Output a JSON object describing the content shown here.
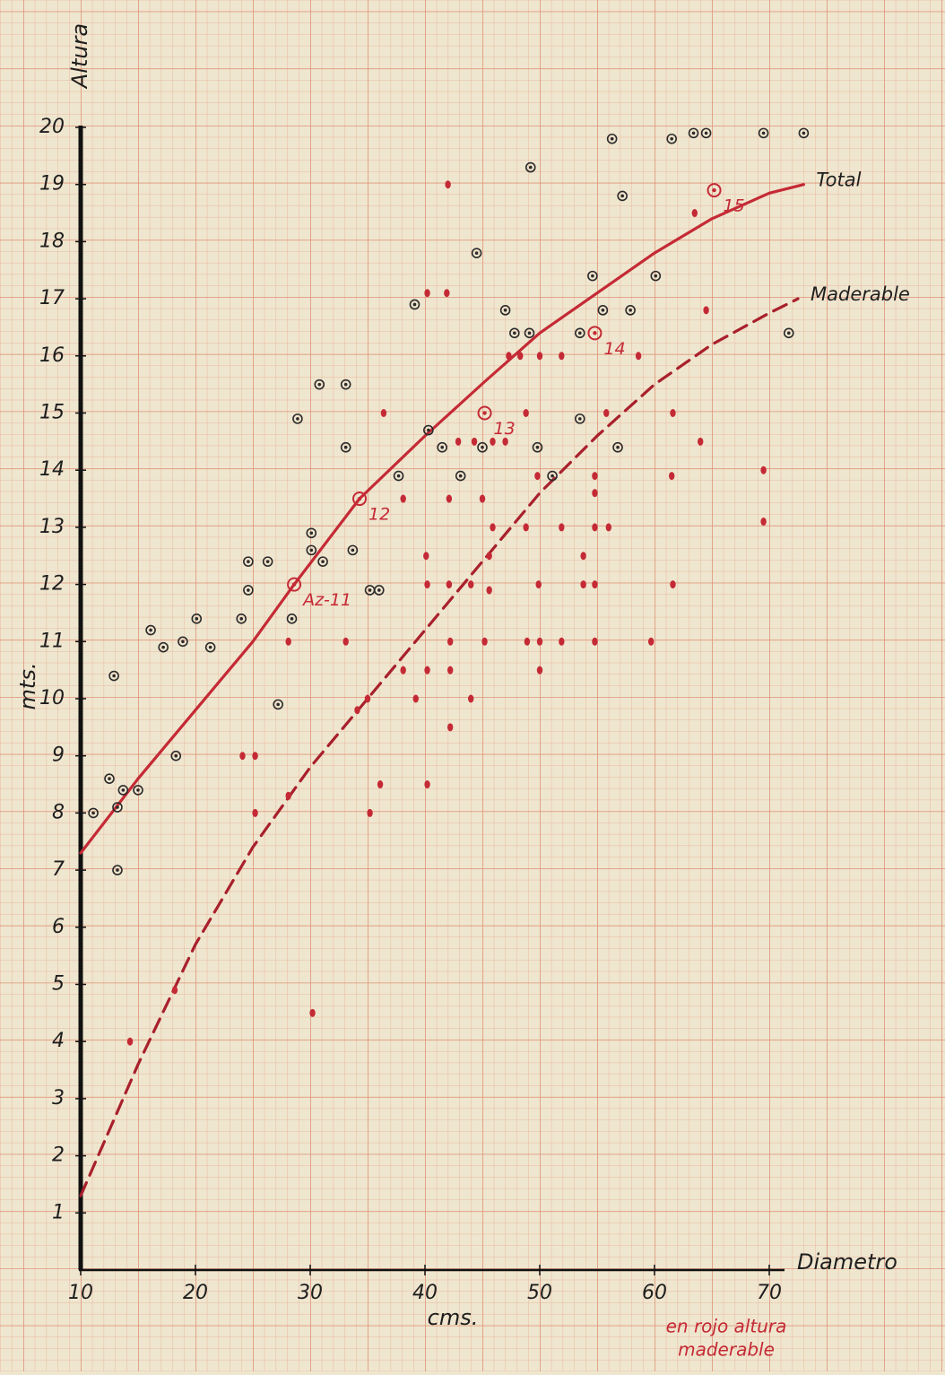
{
  "chart_data": {
    "type": "scatter",
    "y_axis_title": "Altura",
    "y_unit": "mts.",
    "x_axis_title": "Diametro",
    "x_unit": "cms.",
    "note": [
      "en rojo altura",
      "maderable"
    ],
    "xlim": [
      10,
      70
    ],
    "ylim": [
      0,
      20
    ],
    "xticks": [
      10,
      20,
      30,
      40,
      50,
      60,
      70
    ],
    "yticks": [
      1,
      2,
      3,
      4,
      5,
      6,
      7,
      8,
      9,
      10,
      11,
      12,
      13,
      14,
      15,
      16,
      17,
      18,
      19,
      20
    ],
    "points": [
      {
        "color": "#2a2a2a",
        "marker": "ring",
        "x": [
          11.1,
          12.5,
          12.9,
          13.2,
          13.2,
          13.7,
          15.0,
          16.1,
          17.2,
          18.3,
          18.9,
          20.1,
          21.3,
          24.0,
          24.6,
          24.6,
          26.3,
          27.2,
          28.4,
          28.9,
          30.1,
          30.1,
          30.8,
          31.1,
          33.1,
          33.1,
          33.7,
          35.2,
          36.0,
          37.7,
          39.1,
          40.3,
          41.5,
          43.1,
          44.5,
          45.0,
          47.0,
          47.8,
          49.1,
          49.2,
          49.8,
          51.1,
          53.5,
          53.5,
          54.6,
          55.5,
          56.3,
          56.8,
          57.2,
          57.9,
          60.1,
          61.5,
          63.4,
          64.5,
          69.5,
          71.7,
          73.0
        ],
        "values": [
          8.0,
          8.6,
          10.4,
          8.1,
          7.0,
          8.4,
          8.4,
          11.2,
          10.9,
          9.0,
          11.0,
          11.4,
          10.9,
          11.4,
          11.9,
          12.4,
          12.4,
          9.9,
          11.4,
          14.9,
          12.9,
          12.6,
          15.5,
          12.4,
          15.5,
          14.4,
          12.6,
          11.9,
          11.9,
          13.9,
          16.9,
          14.7,
          14.4,
          13.9,
          17.8,
          14.4,
          16.8,
          16.4,
          16.4,
          19.3,
          14.4,
          13.9,
          14.9,
          16.4,
          17.4,
          16.8,
          19.8,
          14.4,
          18.8,
          16.8,
          17.4,
          19.8,
          19.9,
          19.9,
          19.9,
          16.4,
          19.9
        ]
      },
      {
        "color": "#c42a35",
        "marker": "dot",
        "x": [
          14.3,
          18.2,
          24.1,
          25.2,
          25.2,
          28.1,
          28.1,
          30.2,
          33.1,
          34.1,
          35.0,
          35.2,
          36.1,
          36.4,
          38.1,
          38.1,
          39.2,
          40.1,
          40.2,
          40.2,
          40.2,
          40.2,
          41.9,
          42.0,
          42.1,
          42.1,
          42.2,
          42.2,
          42.2,
          42.9,
          44.0,
          44.0,
          44.3,
          45.0,
          45.2,
          45.6,
          45.6,
          45.9,
          45.9,
          47.0,
          47.3,
          48.3,
          48.8,
          48.8,
          48.9,
          49.8,
          49.9,
          50.0,
          50.0,
          50.0,
          51.9,
          51.9,
          51.9,
          53.8,
          53.8,
          54.8,
          54.8,
          54.8,
          54.8,
          54.8,
          55.8,
          56.0,
          58.6,
          59.7,
          61.5,
          61.6,
          61.6,
          63.5,
          64.0,
          64.5,
          69.5,
          69.5
        ],
        "values": [
          4.0,
          4.9,
          9.0,
          9.0,
          8.0,
          8.3,
          11.0,
          4.5,
          11.0,
          9.8,
          10.0,
          8.0,
          8.5,
          15.0,
          13.5,
          10.5,
          10.0,
          12.5,
          12.0,
          10.5,
          8.5,
          17.1,
          17.1,
          19.0,
          13.5,
          12.0,
          11.0,
          10.5,
          9.5,
          14.5,
          12.0,
          10.0,
          14.5,
          13.5,
          11.0,
          11.9,
          12.5,
          13.0,
          14.5,
          14.5,
          16.0,
          16.0,
          15.0,
          13.0,
          11.0,
          13.9,
          12.0,
          11.0,
          10.5,
          16.0,
          16.0,
          13.0,
          11.0,
          12.0,
          12.5,
          12.0,
          13.9,
          13.0,
          11.0,
          13.6,
          15.0,
          13.0,
          16.0,
          11.0,
          13.9,
          12.0,
          15.0,
          18.5,
          14.5,
          16.8,
          14.0,
          13.1
        ]
      }
    ],
    "labeled_points": {
      "color": "#c42a35",
      "labels": [
        "Az-11",
        "12",
        "13",
        "14",
        "15"
      ],
      "x": [
        28.6,
        34.3,
        45.2,
        54.8,
        65.2
      ],
      "values": [
        12.0,
        13.5,
        15.0,
        16.4,
        18.9
      ]
    },
    "curves": [
      {
        "name": "Total",
        "color": "#c42a35",
        "style": "solid",
        "x": [
          10,
          15,
          20,
          25,
          28.6,
          34.3,
          40,
          45.2,
          50,
          55,
          60,
          65,
          70,
          73
        ],
        "values": [
          7.3,
          8.6,
          9.8,
          11.0,
          12.0,
          13.5,
          14.6,
          15.55,
          16.4,
          17.1,
          17.8,
          18.4,
          18.85,
          19.0
        ]
      },
      {
        "name": "Maderable",
        "color": "#a8202c",
        "style": "dashed",
        "x": [
          10,
          15,
          20,
          25,
          30,
          35,
          40,
          45,
          50,
          55,
          60,
          65,
          70,
          72.5
        ],
        "values": [
          1.3,
          3.6,
          5.7,
          7.4,
          8.8,
          10.0,
          11.2,
          12.4,
          13.6,
          14.6,
          15.5,
          16.2,
          16.75,
          17.0
        ]
      }
    ]
  }
}
